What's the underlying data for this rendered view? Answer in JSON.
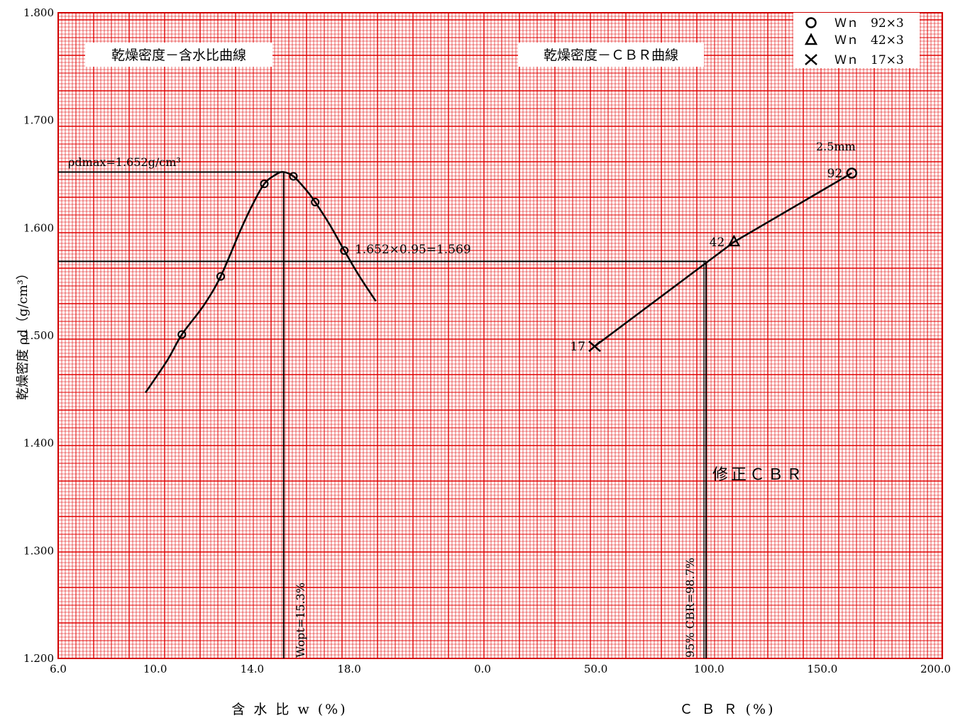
{
  "chart_data": {
    "type": "scatter",
    "ylabel": "乾燥密度 ρd（g/cm³）",
    "ylim": [
      1.2,
      1.8
    ],
    "y_ticks": [
      "1.200",
      "1.300",
      "1.400",
      "1.500",
      "1.600",
      "1.700",
      "1.800"
    ],
    "grid": true,
    "legend_position": "top-right",
    "left_panel": {
      "title": "乾燥密度－含水比曲線",
      "xlabel": "含 水 比 w (%)",
      "xlim": [
        6.0,
        23.5
      ],
      "x_ticks": [
        {
          "value": 6.0,
          "label": "6.0"
        },
        {
          "value": 10.0,
          "label": "10.0"
        },
        {
          "value": 14.0,
          "label": "14.0"
        },
        {
          "value": 18.0,
          "label": "18.0"
        }
      ],
      "points": [
        {
          "w": 11.1,
          "rho": 1.501
        },
        {
          "w": 12.7,
          "rho": 1.555
        },
        {
          "w": 14.5,
          "rho": 1.641
        },
        {
          "w": 15.7,
          "rho": 1.648
        },
        {
          "w": 16.6,
          "rho": 1.624
        },
        {
          "w": 17.8,
          "rho": 1.579
        }
      ],
      "curve": [
        [
          9.6,
          1.447
        ],
        [
          10.5,
          1.477
        ],
        [
          11.1,
          1.501
        ],
        [
          12.0,
          1.528
        ],
        [
          12.7,
          1.555
        ],
        [
          13.5,
          1.597
        ],
        [
          14.0,
          1.621
        ],
        [
          14.5,
          1.641
        ],
        [
          15.0,
          1.65
        ],
        [
          15.3,
          1.652
        ],
        [
          15.7,
          1.648
        ],
        [
          16.2,
          1.636
        ],
        [
          16.6,
          1.624
        ],
        [
          17.2,
          1.603
        ],
        [
          17.8,
          1.579
        ],
        [
          18.4,
          1.556
        ],
        [
          19.1,
          1.532
        ]
      ],
      "rho_dmax": 1.652,
      "w_opt": 15.3,
      "rho_dmax_label": "ρdmax=1.652g/cm³",
      "w_opt_label": "Wopt=15.3%"
    },
    "right_panel": {
      "title": "乾燥密度－ＣＢＲ曲線",
      "xlabel": "Ｃ Ｂ Ｒ (%)",
      "xlim": [
        0.0,
        203.0
      ],
      "x_ticks": [
        {
          "value": 0.0,
          "label": "0.0"
        },
        {
          "value": 50.0,
          "label": "50.0"
        },
        {
          "value": 100.0,
          "label": "100.0"
        },
        {
          "value": 150.0,
          "label": "150.0"
        },
        {
          "value": 200.0,
          "label": "200.0"
        }
      ],
      "points": [
        {
          "blows": "17",
          "cbr": 49.5,
          "rho": 1.49,
          "marker": "x"
        },
        {
          "blows": "42",
          "cbr": 111.0,
          "rho": 1.587,
          "marker": "triangle"
        },
        {
          "blows": "92",
          "cbr": 163.0,
          "rho": 1.651,
          "marker": "circle"
        }
      ],
      "line": [
        [
          49.5,
          1.49
        ],
        [
          111.0,
          1.587
        ],
        [
          163.0,
          1.651
        ]
      ],
      "cbr95": 98.7,
      "rho_95": 1.569,
      "rho_95_label": "1.652×0.95=1.569",
      "cbr95_label": "95% CBR=98.7%",
      "penetration_label": "2.5mm",
      "corrected_label": "修正ＣＢＲ"
    },
    "legend": [
      {
        "marker": "circle",
        "label": "Ｗｎ　92×3"
      },
      {
        "marker": "triangle",
        "label": "Ｗｎ　42×3"
      },
      {
        "marker": "x",
        "label": "Ｗｎ　17×3"
      }
    ],
    "colors": {
      "grid": "#e00000",
      "grid_major": "#d00000",
      "ink": "#000000",
      "background": "#ffffff"
    }
  }
}
